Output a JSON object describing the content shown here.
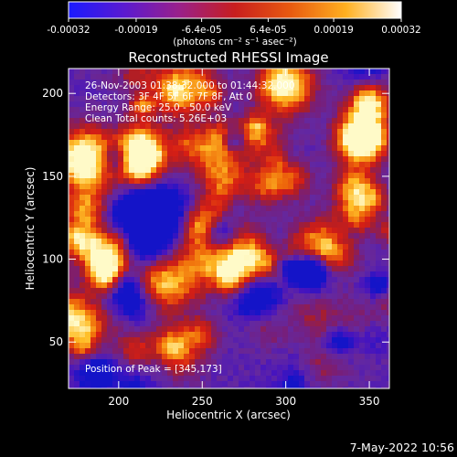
{
  "colorbar": {
    "tick_labels": [
      "-0.00032",
      "-0.00019",
      "-6.4e-05",
      "6.4e-05",
      "0.00019",
      "0.00032"
    ],
    "tick_values": [
      -0.00032,
      -0.00019,
      -6.4e-05,
      6.4e-05,
      0.00019,
      0.00032
    ],
    "range": [
      -0.00032,
      0.00032
    ],
    "unit_label": "(photons cm⁻² s⁻¹ asec⁻²)",
    "stops": [
      "#1a1aff",
      "#5a1ad0",
      "#9a208a",
      "#c81e1e",
      "#e85a10",
      "#ffb020",
      "#ffffff"
    ]
  },
  "plot": {
    "title": "Reconstructed RHESSI Image",
    "info_lines": [
      "26-Nov-2003 01:38:32.000 to 01:44:32.000",
      "Detectors: 3F 4F 5F 6F 7F 8F, Att 0",
      "Energy Range: 25.0 - 50.0 keV",
      "Clean     Total counts: 5.26E+03"
    ],
    "peak_label": "Position of Peak = [345,173]",
    "xlabel": "Heliocentric X (arcsec)",
    "ylabel": "Heliocentric Y (arcsec)",
    "x_ticks": [
      200,
      250,
      300,
      350
    ],
    "y_ticks": [
      50,
      100,
      150,
      200
    ],
    "xlim": [
      170,
      362
    ],
    "ylim": [
      22,
      215
    ]
  },
  "footer": {
    "date": "7-May-2022 10:56"
  }
}
